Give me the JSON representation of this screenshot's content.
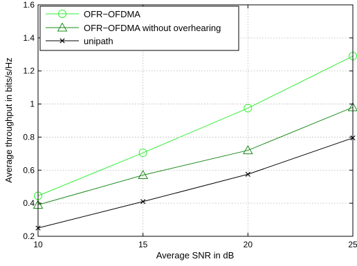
{
  "chart_data": {
    "type": "line",
    "title": "",
    "xlabel": "Average SNR in dB",
    "ylabel": "Average throughput in bits/s/Hz",
    "x": [
      10,
      15,
      20,
      25
    ],
    "xlim": [
      10,
      25
    ],
    "ylim": [
      0.2,
      1.6
    ],
    "xticks": [
      10,
      15,
      20,
      25
    ],
    "yticks": [
      0.2,
      0.4,
      0.6,
      0.8,
      1,
      1.2,
      1.4,
      1.6
    ],
    "xtick_labels": [
      "10",
      "15",
      "20",
      "25"
    ],
    "ytick_labels": [
      "0.2",
      "0.4",
      "0.6",
      "0.8",
      "1",
      "1.2",
      "1.4",
      "1.6"
    ],
    "grid": true,
    "legend_position": "top-left",
    "series": [
      {
        "name": "OFR−OFDMA",
        "values": [
          0.445,
          0.705,
          0.975,
          1.29
        ],
        "color": "#33ee33",
        "marker": "circle"
      },
      {
        "name": "OFR−OFDMA without overhearing",
        "values": [
          0.39,
          0.57,
          0.72,
          0.98
        ],
        "color": "#1a8a1a",
        "marker": "triangle"
      },
      {
        "name": "unipath",
        "values": [
          0.25,
          0.41,
          0.575,
          0.795
        ],
        "color": "#000000",
        "marker": "x"
      }
    ]
  }
}
